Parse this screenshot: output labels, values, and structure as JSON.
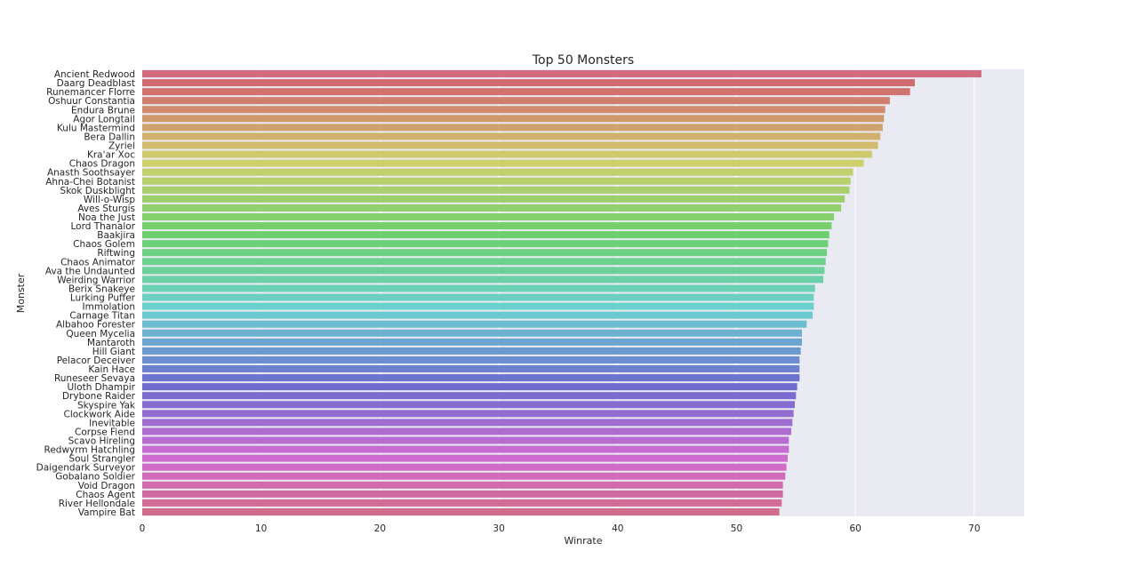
{
  "chart_data": {
    "type": "bar",
    "orientation": "horizontal",
    "title": "Top 50 Monsters",
    "xlabel": "Winrate",
    "ylabel": "Monster",
    "xlim": [
      0,
      74.2
    ],
    "xticks": [
      0,
      10,
      20,
      30,
      40,
      50,
      60,
      70
    ],
    "grid": true,
    "background": "#eaeaf2",
    "categories": [
      "Ancient Redwood",
      "Daarg Deadblast",
      "Runemancer Florre",
      "Oshuur Constantia",
      "Endura Brune",
      "Agor Longtail",
      "Kulu Mastermind",
      "Bera Dallin",
      "Zyriel",
      "Kra'ar Xoc",
      "Chaos Dragon",
      "Anasth Soothsayer",
      "Ahna-Chei Botanist",
      "Skok Duskblight",
      "Will-o-Wisp",
      "Aves Sturgis",
      "Noa the Just",
      "Lord Thanalor",
      "Baakjira",
      "Chaos Golem",
      "Riftwing",
      "Chaos Animator",
      "Ava the Undaunted",
      "Weirding Warrior",
      "Berix Snakeye",
      "Lurking Puffer",
      "Immolation",
      "Carnage Titan",
      "Albahoo Forester",
      "Queen Mycelia",
      "Mantaroth",
      "Hill Giant",
      "Pelacor Deceiver",
      "Kain Hace",
      "Runeseer Sevaya",
      "Uloth Dhampir",
      "Drybone Raider",
      "Skyspire Yak",
      "Clockwork Aide",
      "Inevitable",
      "Corpse Fiend",
      "Scavo Hireling",
      "Redwyrm Hatchling",
      "Soul Strangler",
      "Daigendark Surveyor",
      "Gobalano Soldier",
      "Void Dragon",
      "Chaos Agent",
      "River Hellondale",
      "Vampire Bat"
    ],
    "values": [
      70.6,
      65.0,
      64.6,
      62.9,
      62.5,
      62.4,
      62.3,
      62.1,
      61.9,
      61.4,
      60.7,
      59.8,
      59.6,
      59.5,
      59.1,
      58.8,
      58.2,
      58.0,
      57.8,
      57.7,
      57.6,
      57.5,
      57.4,
      57.3,
      56.6,
      56.5,
      56.5,
      56.4,
      55.9,
      55.5,
      55.5,
      55.4,
      55.3,
      55.3,
      55.3,
      55.1,
      55.0,
      54.9,
      54.8,
      54.7,
      54.6,
      54.4,
      54.4,
      54.3,
      54.2,
      54.1,
      53.9,
      53.9,
      53.8,
      53.6
    ]
  }
}
